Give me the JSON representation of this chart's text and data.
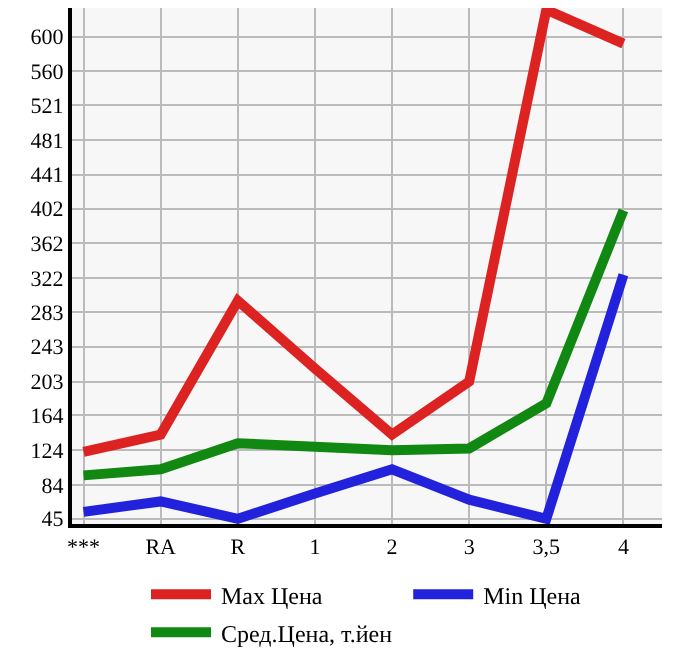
{
  "chart_data": {
    "type": "line",
    "categories": [
      "***",
      "RA",
      "R",
      "1",
      "2",
      "3",
      "3,5",
      "4"
    ],
    "series": [
      {
        "name": "Max Цена",
        "color": "#dd2222",
        "values": [
          122,
          142,
          296,
          218,
          142,
          203,
          631,
          592
        ]
      },
      {
        "name": "Min Цена",
        "color": "#2222dd",
        "values": [
          53,
          65,
          45,
          74,
          102,
          67,
          45,
          326
        ]
      },
      {
        "name": "Сред.Цена, т.йен",
        "color": "#118811",
        "values": [
          95,
          102,
          132,
          128,
          124,
          126,
          178,
          400
        ]
      }
    ],
    "ylim": [
      39,
      633
    ],
    "yticks": [
      45,
      84,
      124,
      164,
      203,
      243,
      283,
      322,
      362,
      402,
      441,
      481,
      521,
      560,
      600
    ],
    "grid": true,
    "legend": "bottom",
    "marker": "none",
    "line_style": "solid"
  }
}
